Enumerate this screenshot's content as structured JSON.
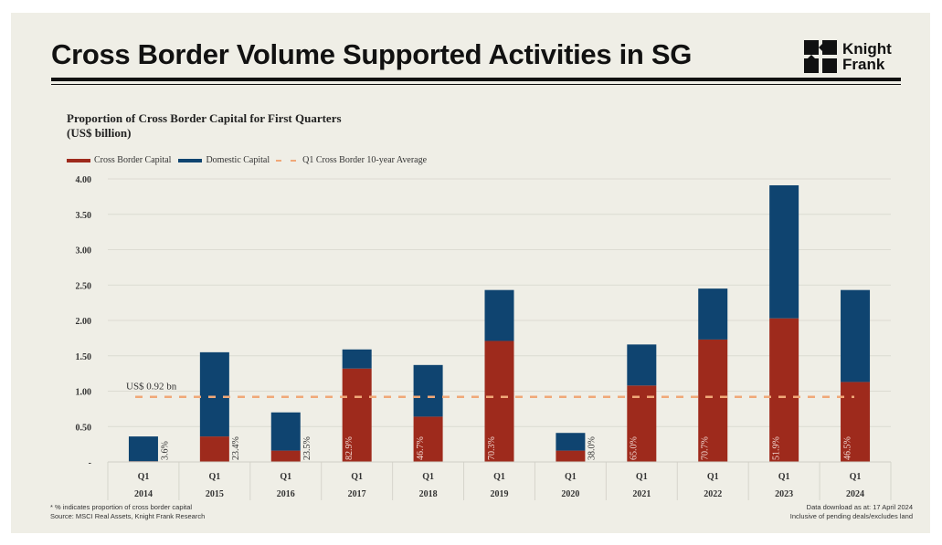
{
  "header": {
    "title": "Cross Border Volume Supported Activities in SG",
    "logo_text": [
      "Knight",
      "Frank"
    ]
  },
  "chart_data": {
    "type": "bar",
    "stacked": true,
    "title": "Proportion of Cross Border Capital for First Quarters",
    "subtitle": "(US$ billion)",
    "categories": [
      "2014",
      "2015",
      "2016",
      "2017",
      "2018",
      "2019",
      "2020",
      "2021",
      "2022",
      "2023",
      "2024"
    ],
    "quarter_label": "Q1",
    "series": [
      {
        "name": "Cross Border Capital",
        "color": "#9e2a1c",
        "values": [
          0.01,
          0.36,
          0.16,
          1.32,
          0.64,
          1.71,
          0.16,
          1.08,
          1.73,
          2.03,
          1.13
        ]
      },
      {
        "name": "Domestic Capital",
        "color": "#0f4470",
        "values": [
          0.35,
          1.19,
          0.54,
          0.27,
          0.73,
          0.72,
          0.25,
          0.58,
          0.72,
          1.88,
          1.3
        ]
      }
    ],
    "percent_labels": [
      "3.6%",
      "23.4%",
      "23.5%",
      "82.9%",
      "46.7%",
      "70.3%",
      "38.0%",
      "65.0%",
      "70.7%",
      "51.9%",
      "46.5%"
    ],
    "average_line": {
      "name": "Q1 Cross Border 10-year Average",
      "value": 0.92,
      "label": "US$ 0.92 bn",
      "color": "#f0a878"
    },
    "yticks": [
      "-",
      "0.50",
      "1.00",
      "1.50",
      "2.00",
      "2.50",
      "3.00",
      "3.50",
      "4.00"
    ],
    "ylim": [
      0,
      4
    ],
    "grid": true,
    "legend_position": "top-left"
  },
  "footer": {
    "note": "* % indicates proportion of cross border capital",
    "source": "Source: MSCI Real Assets, Knight Frank Research",
    "download": "Data download as at: 17 April 2024",
    "inclusive": "Inclusive of pending deals/excludes land"
  }
}
